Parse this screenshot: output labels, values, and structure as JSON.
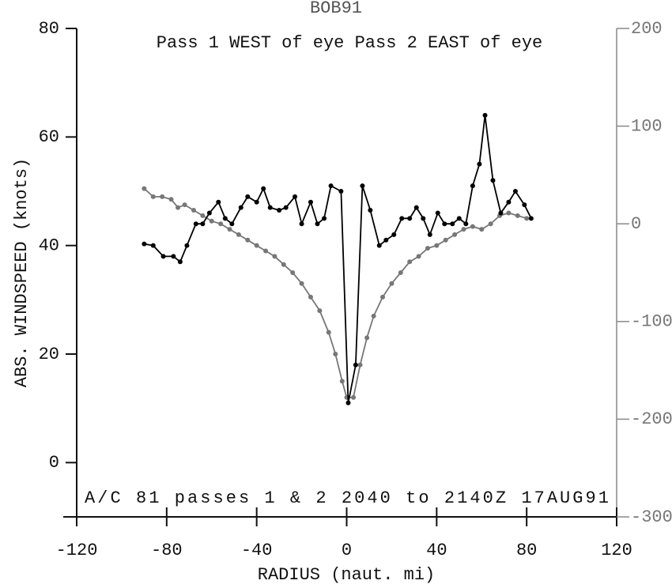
{
  "chart_data": {
    "type": "line",
    "title": "BOB91",
    "annotation": "A/C 81 passes  1 &  2    2040 to 2140Z 17AUG91",
    "x_label": "RADIUS (naut. mi)",
    "y_label": "ABS. WINDSPEED (knots)",
    "xlim": [
      -120,
      120
    ],
    "xticks": [
      -120,
      -80,
      -40,
      0,
      40,
      80,
      120
    ],
    "ylim": [
      -10,
      80
    ],
    "yticks": [
      0,
      20,
      40,
      60,
      80
    ],
    "y2lim": [
      -300,
      200
    ],
    "y2ticks": [
      -300,
      -200,
      -100,
      0,
      100,
      200
    ],
    "series": [
      {
        "name": "Pass  1 WEST of eye",
        "color": "#000000",
        "x": [
          -90,
          -86,
          -81.5,
          -77,
          -74,
          -71,
          -67,
          -64,
          -61,
          -57,
          -54,
          -51,
          -47,
          -44,
          -40,
          -37,
          -34,
          -30,
          -27,
          -23,
          -20,
          -16,
          -13,
          -10,
          -7,
          -2.5,
          0.7,
          4,
          7,
          10.5,
          14.5,
          17.5,
          21,
          24.5,
          28,
          31,
          34,
          37,
          40.5,
          43.5,
          47,
          50,
          53,
          56,
          59,
          61.5,
          65,
          68.5,
          72,
          75,
          79,
          82
        ],
        "values": [
          40.3,
          40,
          38,
          38,
          37,
          40,
          44,
          44,
          46,
          48,
          45,
          44,
          47,
          49,
          48,
          50.5,
          47,
          46.5,
          47,
          49,
          44,
          48,
          44,
          45,
          51,
          50,
          11,
          18,
          51,
          46.5,
          40,
          41,
          42,
          45,
          45,
          47,
          45,
          42,
          46,
          44,
          44,
          45,
          44,
          51,
          55,
          64,
          52,
          46,
          48,
          50,
          47.5,
          45
        ]
      },
      {
        "name": "Pass  2 EAST of eye",
        "color": "#777777",
        "x": [
          -90,
          -86,
          -82,
          -78,
          -75,
          -72,
          -68,
          -64,
          -60,
          -56,
          -52,
          -48,
          -44,
          -40,
          -36,
          -32,
          -28,
          -24,
          -20,
          -16,
          -12,
          -8,
          -5,
          -2,
          0,
          3,
          6,
          9,
          12,
          16,
          20,
          24,
          28,
          32,
          36,
          40,
          44,
          48,
          52,
          56,
          60,
          64,
          68,
          72,
          76,
          80
        ],
        "values": [
          50.5,
          49,
          49,
          48.5,
          47,
          47.5,
          46.5,
          45.5,
          44.5,
          44,
          43,
          42,
          41,
          40,
          39,
          38,
          36.5,
          35,
          33,
          30.5,
          28,
          24,
          20,
          15,
          12,
          12,
          18,
          23,
          27,
          30.5,
          33,
          35,
          37,
          38,
          39.5,
          40,
          41,
          42,
          43,
          43.5,
          43,
          44,
          45.5,
          46,
          45.5,
          45
        ]
      }
    ]
  }
}
